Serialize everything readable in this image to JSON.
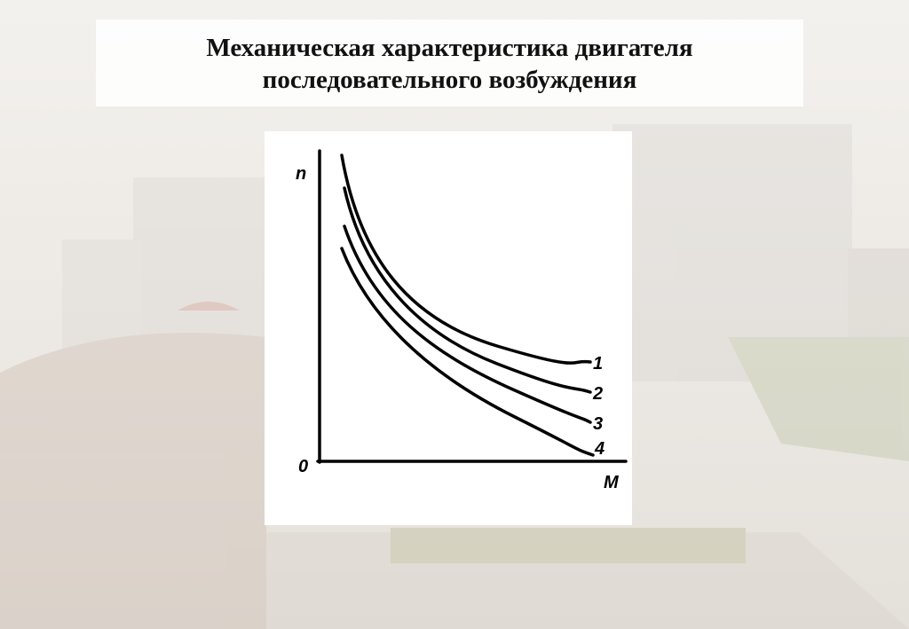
{
  "title": {
    "lines": [
      "Механическая характеристика двигателя",
      "последовательного возбуждения"
    ]
  },
  "figure": {
    "y_axis_label": "n",
    "x_axis_label": "M",
    "origin_label": "0",
    "curves": [
      {
        "label": "1"
      },
      {
        "label": "2"
      },
      {
        "label": "3"
      },
      {
        "label": "4"
      }
    ]
  }
}
